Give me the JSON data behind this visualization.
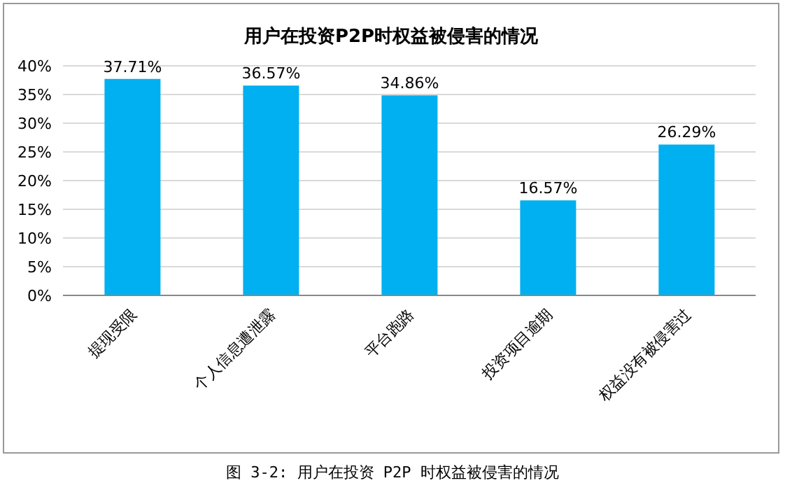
{
  "chart_data": {
    "type": "bar",
    "title": "用户在投资P2P时权益被侵害的情况",
    "categories": [
      "提现受限",
      "个人信息遭泄露",
      "平台跑路",
      "投资项目逾期",
      "权益没有被侵害过"
    ],
    "values": [
      37.71,
      36.57,
      34.86,
      16.57,
      26.29
    ],
    "value_labels": [
      "37.71%",
      "36.57%",
      "34.86%",
      "16.57%",
      "26.29%"
    ],
    "color": "#00b0f0",
    "ylim": [
      0,
      40
    ],
    "yticks": [
      {
        "value": 0,
        "label": "0%"
      },
      {
        "value": 5,
        "label": "5%"
      },
      {
        "value": 10,
        "label": "10%"
      },
      {
        "value": 15,
        "label": "15%"
      },
      {
        "value": 20,
        "label": "20%"
      },
      {
        "value": 25,
        "label": "25%"
      },
      {
        "value": 30,
        "label": "30%"
      },
      {
        "value": 35,
        "label": "35%"
      },
      {
        "value": 40,
        "label": "40%"
      }
    ],
    "grid": "y",
    "annotations": [
      "图 3-2: 用户在投资 P2P 时权益被侵害的情况"
    ]
  }
}
